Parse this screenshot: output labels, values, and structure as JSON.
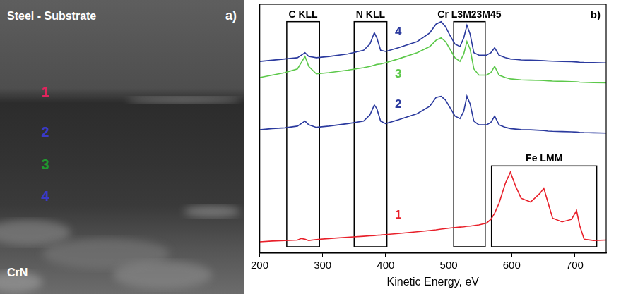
{
  "image_panel": {
    "letter": "a)",
    "labels": [
      {
        "text": "Steel - Substrate",
        "color": "#ffffff"
      },
      {
        "text": "1",
        "color": "#e0245e"
      },
      {
        "text": "2",
        "color": "#3a3ac8"
      },
      {
        "text": "3",
        "color": "#1f9a2e"
      },
      {
        "text": "4",
        "color": "#3a3ac8"
      },
      {
        "text": "CrN",
        "color": "#ffffff"
      }
    ]
  },
  "chart_data": {
    "type": "line",
    "panel_label": "b)",
    "xlabel": "Kinetic Energy, eV",
    "xlim": [
      200,
      750
    ],
    "xticks": [
      200,
      300,
      400,
      500,
      600,
      700
    ],
    "ylim": [
      0,
      100
    ],
    "tick_labels": "x",
    "grid": false,
    "x": [
      200,
      220,
      240,
      260,
      266,
      272,
      278,
      290,
      310,
      340,
      365,
      375,
      382,
      386,
      392,
      400,
      420,
      450,
      470,
      480,
      488,
      495,
      502,
      510,
      518,
      524,
      529,
      534,
      540,
      548,
      560,
      567,
      573,
      580,
      590,
      598,
      606,
      615,
      630,
      645,
      651,
      658,
      665,
      680,
      695,
      703,
      708,
      715,
      730,
      750
    ],
    "series": [
      {
        "name": "1",
        "color": "#e8202a",
        "values": [
          4.5,
          4.8,
          5.0,
          5.2,
          5.8,
          5.5,
          5.0,
          5.4,
          5.8,
          6.3,
          6.7,
          6.9,
          7.0,
          7.1,
          7.2,
          7.4,
          7.8,
          8.5,
          9.0,
          9.3,
          9.6,
          9.8,
          10.0,
          10.2,
          10.4,
          10.5,
          10.7,
          10.8,
          11.0,
          11.3,
          12.0,
          13.5,
          16.0,
          20.0,
          28.0,
          32.5,
          27.0,
          22.0,
          20.5,
          24.0,
          26.0,
          20.0,
          14.0,
          12.5,
          13.5,
          17.0,
          11.0,
          5.5,
          5.0,
          5.2
        ]
      },
      {
        "name": "2",
        "color": "#2b3a9e",
        "values": [
          49.5,
          50.0,
          50.3,
          51.0,
          52.0,
          53.0,
          51.5,
          50.5,
          51.0,
          52.0,
          53.0,
          55.5,
          59.5,
          58.0,
          53.0,
          52.0,
          53.5,
          56.0,
          59.0,
          62.5,
          63.0,
          61.5,
          58.5,
          55.0,
          54.0,
          57.0,
          63.0,
          60.0,
          53.0,
          51.5,
          51.5,
          52.5,
          55.0,
          51.5,
          50.5,
          50.0,
          49.8,
          49.6,
          49.5,
          49.3,
          49.2,
          49.0,
          48.9,
          48.8,
          48.7,
          48.6,
          48.5,
          48.4,
          48.3,
          48.2
        ]
      },
      {
        "name": "3",
        "color": "#5cc84a",
        "values": [
          70.5,
          71.5,
          72.5,
          74.0,
          76.5,
          79.0,
          75.0,
          72.0,
          72.5,
          73.5,
          74.5,
          75.0,
          75.5,
          75.8,
          76.0,
          76.5,
          78.0,
          80.5,
          83.0,
          85.5,
          86.5,
          85.0,
          82.0,
          78.5,
          77.0,
          80.0,
          85.0,
          82.0,
          74.0,
          71.5,
          71.5,
          72.5,
          75.0,
          71.5,
          70.5,
          70.0,
          69.8,
          69.6,
          69.5,
          69.4,
          69.3,
          69.2,
          69.1,
          69.0,
          68.9,
          68.8,
          68.7,
          68.6,
          68.5,
          68.4
        ]
      },
      {
        "name": "4",
        "color": "#2b3a9e",
        "values": [
          77.0,
          77.5,
          78.0,
          78.5,
          79.5,
          80.5,
          79.0,
          78.5,
          79.0,
          80.0,
          81.5,
          84.0,
          88.5,
          86.5,
          81.5,
          81.0,
          82.5,
          85.0,
          88.5,
          92.0,
          93.0,
          91.0,
          87.5,
          84.0,
          83.0,
          86.5,
          91.5,
          88.0,
          80.5,
          79.5,
          79.5,
          80.5,
          82.5,
          79.5,
          78.5,
          78.0,
          77.8,
          77.6,
          77.5,
          77.4,
          77.3,
          77.2,
          77.1,
          77.0,
          76.9,
          76.8,
          76.7,
          76.6,
          76.5,
          76.4
        ]
      }
    ],
    "annotations": [
      {
        "text": "C KLL",
        "x": [
          243,
          295
        ],
        "y": [
          2.5,
          93
        ]
      },
      {
        "text": "N KLL",
        "x": [
          350,
          402
        ],
        "y": [
          2.5,
          93
        ]
      },
      {
        "text": "Cr L3M23M45",
        "x": [
          508,
          558
        ],
        "y": [
          2.5,
          93
        ]
      },
      {
        "text": "Fe LMM",
        "x": [
          568,
          735
        ],
        "y": [
          2.5,
          35
        ]
      }
    ]
  }
}
